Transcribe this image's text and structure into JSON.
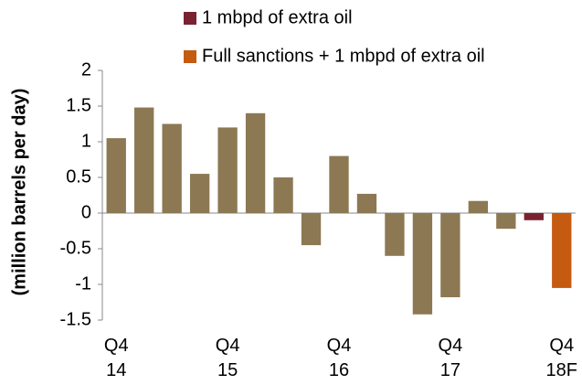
{
  "chart_data": {
    "type": "bar",
    "y_label": "(million barrels per day)",
    "categories": [
      "Q4\n14",
      null,
      null,
      null,
      "Q4\n15",
      null,
      null,
      null,
      "Q4\n16",
      null,
      null,
      null,
      "Q4\n17",
      null,
      null,
      null,
      "Q4\n18F"
    ],
    "series": [
      {
        "color": "#8c7853",
        "values": [
          1.05,
          1.48,
          1.25,
          0.55,
          1.2,
          1.4,
          0.5,
          -0.45,
          0.8,
          0.27,
          -0.6,
          -1.42,
          -1.18,
          0.17,
          -0.22,
          null,
          null
        ]
      },
      {
        "name": "1 mbpd of extra oil",
        "color": "#7b2230",
        "values": [
          null,
          null,
          null,
          null,
          null,
          null,
          null,
          null,
          null,
          null,
          null,
          null,
          null,
          null,
          null,
          -0.1,
          null
        ]
      },
      {
        "name": "Full sanctions + 1 mbpd of extra oil",
        "color": "#c55a11",
        "values": [
          null,
          null,
          null,
          null,
          null,
          null,
          null,
          null,
          null,
          null,
          null,
          null,
          null,
          null,
          null,
          null,
          -1.05
        ]
      }
    ],
    "ylim": [
      -1.5,
      2
    ],
    "yticks": [
      -1.5,
      -1,
      -0.5,
      0,
      0.5,
      1,
      1.5,
      2
    ],
    "grid": false
  }
}
